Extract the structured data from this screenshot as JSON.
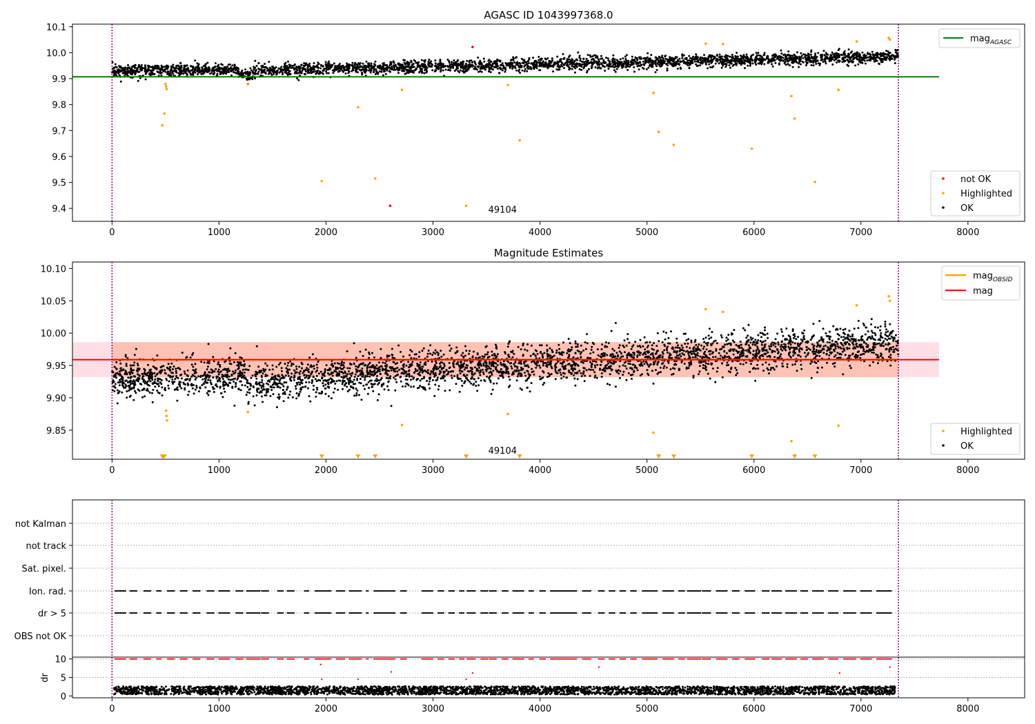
{
  "chart_data": [
    {
      "type": "scatter",
      "title": "AGASC ID 1043997368.0",
      "xlabel": "",
      "ylabel": "",
      "xlim": [
        -370,
        8530
      ],
      "ylim": [
        9.35,
        10.11
      ],
      "xticks": [
        0,
        1000,
        2000,
        3000,
        4000,
        5000,
        6000,
        7000,
        8000
      ],
      "yticks": [
        9.4,
        9.5,
        9.6,
        9.7,
        9.8,
        9.9,
        10.0,
        10.1
      ],
      "ytick_labels": [
        "9.4",
        "9.5",
        "9.6",
        "9.7",
        "9.8",
        "9.9",
        "10.0",
        "10.1"
      ],
      "obs_bounds": [
        0,
        7350
      ],
      "annotation": {
        "text": "49104",
        "x": 3650,
        "y": 9.37
      },
      "reference_line": {
        "label": "mag",
        "label_sub": "AGASC",
        "y": 9.907,
        "x_range": [
          -370,
          7730
        ],
        "color": "#008000"
      },
      "legend": {
        "position": "lower-right",
        "entries": [
          {
            "label": "not OK",
            "color": "#ff0000"
          },
          {
            "label": "Highlighted",
            "color": "#ffa500"
          },
          {
            "label": "OK",
            "color": "#000000"
          }
        ]
      },
      "series": [
        {
          "name": "OK",
          "color": "#000000",
          "trend": {
            "x": [
              0,
              1250,
              1250,
              7350
            ],
            "y": [
              9.93,
              9.935,
              9.93,
              9.985
            ],
            "dip": {
              "x": 1250,
              "y": 9.905
            },
            "noise": 0.012,
            "count": 3200
          }
        },
        {
          "name": "not OK",
          "color": "#ff0000",
          "x": [
            2600,
            3370
          ],
          "y": [
            9.41,
            10.022
          ]
        },
        {
          "name": "Highlighted",
          "color": "#ffa500",
          "x": [
            470,
            490,
            500,
            505,
            510,
            1270,
            1960,
            2300,
            2460,
            2710,
            3310,
            3700,
            3810,
            5060,
            5110,
            5250,
            5550,
            5710,
            5980,
            6350,
            6380,
            6570,
            6790,
            6960,
            7260,
            7270
          ],
          "y": [
            9.72,
            9.765,
            9.88,
            9.87,
            9.86,
            9.878,
            9.505,
            9.79,
            9.515,
            9.857,
            9.41,
            9.875,
            9.662,
            9.845,
            9.695,
            9.645,
            10.035,
            10.033,
            9.63,
            9.833,
            9.746,
            9.502,
            9.857,
            10.043,
            10.057,
            10.05
          ]
        }
      ]
    },
    {
      "type": "scatter",
      "title": "Magnitude Estimates",
      "xlabel": "",
      "ylabel": "",
      "xlim": [
        -370,
        8530
      ],
      "ylim": [
        9.805,
        10.11
      ],
      "xticks": [
        0,
        1000,
        2000,
        3000,
        4000,
        5000,
        6000,
        7000,
        8000
      ],
      "yticks": [
        9.85,
        9.9,
        9.95,
        10.0,
        10.05,
        10.1
      ],
      "ytick_labels": [
        "9.85",
        "9.90",
        "9.95",
        "10.00",
        "10.05",
        "10.10"
      ],
      "obs_bounds": [
        0,
        7350
      ],
      "annotation": {
        "text": "49104",
        "x": 3650,
        "y": 9.8135
      },
      "mag_line": {
        "label": "mag",
        "y": 9.959,
        "band": [
          9.932,
          9.986
        ],
        "x_range": [
          -370,
          7730
        ],
        "color": "#ff0000",
        "band_color": "#ffc0cb"
      },
      "obsid_mag": {
        "label": "mag",
        "label_sub": "OBSID",
        "color": "#ffa500",
        "y": 9.959,
        "band": [
          9.932,
          9.986
        ],
        "x_range": [
          0,
          7350
        ],
        "band_color": "#ffa07a"
      },
      "legend_lines": [
        {
          "label": "mag",
          "label_sub": "OBSID",
          "color": "#ffa500"
        },
        {
          "label": "mag",
          "label_sub": "",
          "color": "#ff0000"
        }
      ],
      "legend": {
        "position": "lower-right",
        "entries": [
          {
            "label": "Highlighted",
            "color": "#ffa500"
          },
          {
            "label": "OK",
            "color": "#000000"
          }
        ]
      },
      "series": [
        {
          "name": "OK",
          "color": "#000000",
          "trend": {
            "x": [
              0,
              1250,
              1250,
              7350
            ],
            "y": [
              9.93,
              9.935,
              9.925,
              9.985
            ],
            "noise": 0.015,
            "count": 3500
          }
        },
        {
          "name": "Highlighted",
          "color": "#ffa500",
          "x": [
            505,
            510,
            515,
            1270,
            2710,
            3700,
            5060,
            5550,
            5710,
            6350,
            6790,
            6960,
            7260,
            7270
          ],
          "y": [
            9.88,
            9.872,
            9.865,
            9.878,
            9.858,
            9.875,
            9.846,
            10.037,
            10.033,
            9.833,
            9.857,
            10.043,
            10.057,
            10.05
          ]
        },
        {
          "name": "below-range",
          "color": "#ffa500",
          "x": [
            470,
            480,
            490,
            1960,
            2300,
            2460,
            3310,
            3810,
            5110,
            5250,
            5980,
            6380,
            6570
          ]
        }
      ]
    },
    {
      "type": "scatter",
      "title": "",
      "xlabel": "",
      "ylabel": "",
      "xlim": [
        -370,
        8530
      ],
      "flag_rows": [
        "not Kalman",
        "not track",
        "Sat. pixel.",
        "Ion. rad.",
        "dr > 5",
        "OBS not OK"
      ],
      "obs_bounds": [
        0,
        7350
      ],
      "flag_clusters": [
        [
          30,
          130
        ],
        [
          170,
          240
        ],
        [
          300,
          360
        ],
        [
          420,
          460
        ],
        [
          520,
          590
        ],
        [
          640,
          700
        ],
        [
          760,
          830
        ],
        [
          890,
          960
        ],
        [
          1000,
          1100
        ],
        [
          1160,
          1220
        ],
        [
          1260,
          1390
        ],
        [
          1400,
          1470
        ],
        [
          1550,
          1600
        ],
        [
          1640,
          1700
        ],
        [
          1800,
          1840
        ],
        [
          1900,
          2050
        ],
        [
          2100,
          2180
        ],
        [
          2220,
          2330
        ],
        [
          2380,
          2400
        ],
        [
          2450,
          2650
        ],
        [
          2700,
          2750
        ],
        [
          2900,
          3000
        ],
        [
          3050,
          3100
        ],
        [
          3150,
          3200
        ],
        [
          3250,
          3290
        ],
        [
          3320,
          3400
        ],
        [
          3450,
          3510
        ],
        [
          3530,
          3590
        ],
        [
          3650,
          3700
        ],
        [
          3750,
          3850
        ],
        [
          3900,
          3940
        ],
        [
          4000,
          4050
        ],
        [
          4100,
          4350
        ],
        [
          4400,
          4480
        ],
        [
          4550,
          4600
        ],
        [
          4650,
          4700
        ],
        [
          4750,
          4800
        ],
        [
          4850,
          4900
        ],
        [
          4960,
          5100
        ],
        [
          5150,
          5250
        ],
        [
          5300,
          5350
        ],
        [
          5380,
          5500
        ],
        [
          5520,
          5600
        ],
        [
          5650,
          5750
        ],
        [
          5800,
          5870
        ],
        [
          5920,
          6010
        ],
        [
          6080,
          6150
        ],
        [
          6170,
          6260
        ],
        [
          6300,
          6400
        ],
        [
          6440,
          6500
        ],
        [
          6550,
          6650
        ],
        [
          6700,
          6790
        ],
        [
          6840,
          6950
        ],
        [
          7000,
          7100
        ],
        [
          7150,
          7290
        ]
      ]
    },
    {
      "type": "scatter",
      "title": "",
      "xlabel": "",
      "ylabel": "dr",
      "xlim": [
        -370,
        8530
      ],
      "ylim": [
        -0.5,
        10.5
      ],
      "xticks": [
        0,
        1000,
        2000,
        3000,
        4000,
        5000,
        6000,
        7000,
        8000
      ],
      "yticks": [
        0,
        5,
        10
      ],
      "obs_bounds": [
        0,
        7350
      ],
      "series": [
        {
          "name": "dr",
          "color": "#000000",
          "baseline": {
            "mean": 1.5,
            "spread": 1.1,
            "count": 3200
          }
        },
        {
          "name": "dr > 5",
          "color": "#ff0000",
          "y_cap": 10,
          "x": [
            1960,
            2300,
            2610,
            3310,
            3370,
            4550,
            6800,
            7270,
            1950
          ],
          "y": [
            4.5,
            4.5,
            6.5,
            4.5,
            6.2,
            7.8,
            6.2,
            7.8,
            8.5
          ]
        }
      ]
    }
  ]
}
